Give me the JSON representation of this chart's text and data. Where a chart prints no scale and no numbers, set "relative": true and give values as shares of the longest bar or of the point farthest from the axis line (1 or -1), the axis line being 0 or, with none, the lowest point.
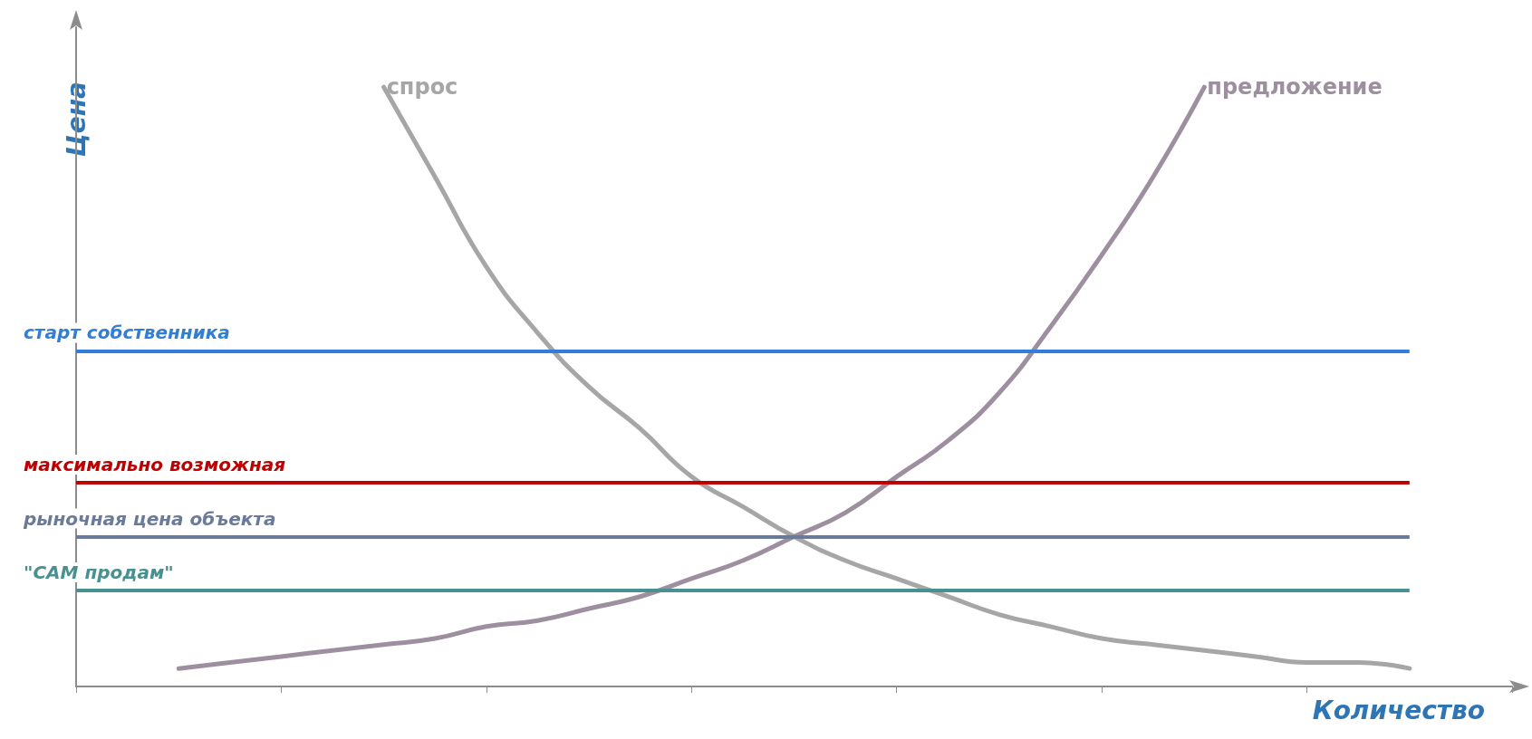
{
  "chart_data": {
    "type": "line",
    "relative": true,
    "xlabel": "Количество",
    "ylabel": "Цена",
    "categories": [
      null,
      null,
      null,
      null,
      null,
      null,
      null,
      null,
      null,
      null,
      null,
      null,
      null,
      null,
      null,
      null,
      null,
      null,
      null,
      null,
      null,
      null,
      null,
      null,
      null,
      null,
      null,
      null,
      null
    ],
    "series": [
      {
        "name": "спрос",
        "color": "#a6a6a6",
        "values": [
          null,
          null,
          null,
          null,
          null,
          null,
          1.0,
          0.85,
          0.7,
          0.59,
          0.5,
          0.43,
          0.35,
          0.3,
          0.25,
          0.21,
          0.18,
          0.15,
          0.12,
          0.1,
          0.08,
          0.07,
          0.06,
          0.05,
          0.04,
          0.04,
          0.03,
          null,
          null
        ]
      },
      {
        "name": "предложение",
        "color": "#9e8fa0",
        "values": [
          null,
          null,
          0.03,
          0.04,
          0.05,
          0.06,
          0.07,
          0.08,
          0.1,
          0.11,
          0.13,
          0.15,
          0.18,
          0.21,
          0.25,
          0.29,
          0.35,
          0.41,
          0.49,
          0.6,
          0.72,
          0.85,
          1.0,
          null,
          null,
          null,
          null,
          null,
          null
        ]
      }
    ],
    "ref_lines": [
      {
        "axis": "y",
        "value": 0.56,
        "label": "старт собственника",
        "color": "#2f7ed8"
      },
      {
        "axis": "y",
        "value": 0.34,
        "label": "максимально возможная",
        "color": "#c00000"
      },
      {
        "axis": "y",
        "value": 0.25,
        "label": "рыночная цена объекта",
        "color": "#6a7a9a"
      },
      {
        "axis": "y",
        "value": 0.16,
        "label": "\"САМ продам\"",
        "color": "#4a9090"
      }
    ],
    "grid": false,
    "legend": false,
    "marker": "none",
    "line_style": "solid"
  }
}
